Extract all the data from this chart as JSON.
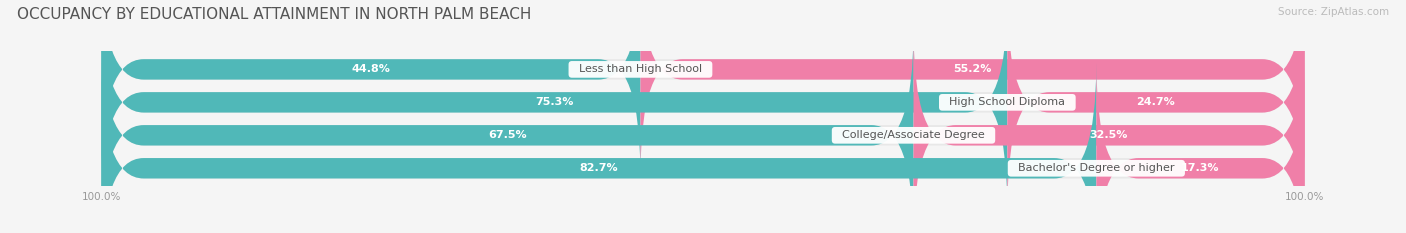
{
  "title": "OCCUPANCY BY EDUCATIONAL ATTAINMENT IN NORTH PALM BEACH",
  "source": "Source: ZipAtlas.com",
  "categories": [
    "Less than High School",
    "High School Diploma",
    "College/Associate Degree",
    "Bachelor's Degree or higher"
  ],
  "owner_pct": [
    44.8,
    75.3,
    67.5,
    82.7
  ],
  "renter_pct": [
    55.2,
    24.7,
    32.5,
    17.3
  ],
  "owner_color": "#50b8b8",
  "renter_color": "#f07fa8",
  "bg_color": "#f5f5f5",
  "bar_bg_color": "#e8e8e8",
  "title_fontsize": 11,
  "label_fontsize": 8,
  "pct_fontsize": 8,
  "source_fontsize": 7.5,
  "axis_label_fontsize": 7.5,
  "legend_fontsize": 8
}
